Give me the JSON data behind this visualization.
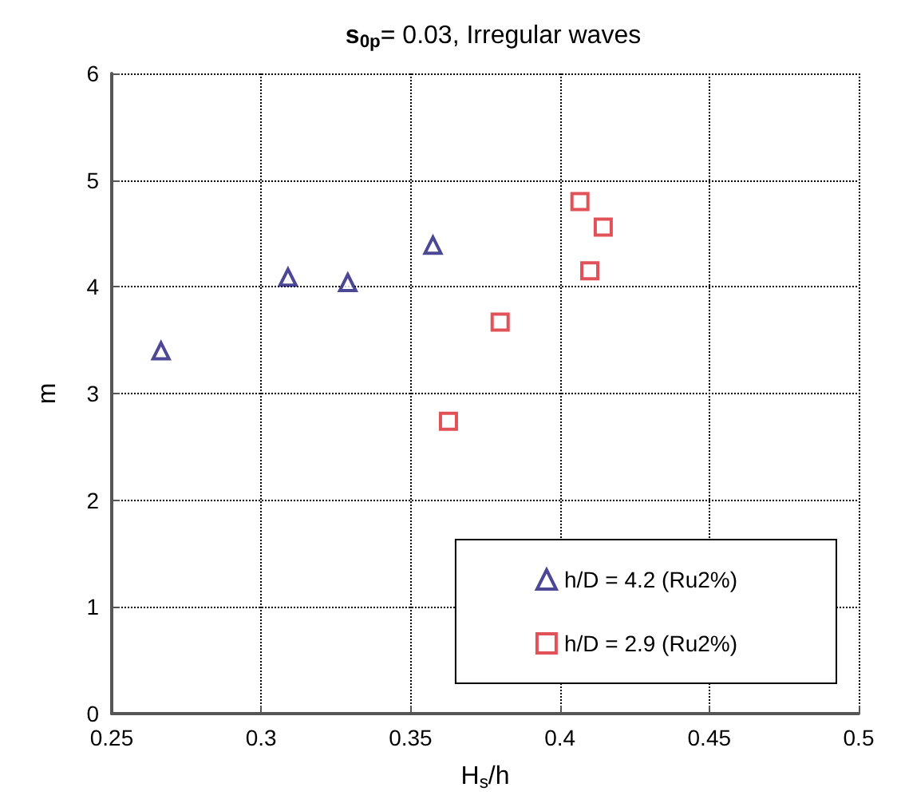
{
  "chart_data": {
    "type": "scatter",
    "title": "s$_{0p}$= 0.03, Irregular waves",
    "xlabel": "H$_{s}$/h",
    "ylabel": "m",
    "series": [
      {
        "name": "h/D = 4.2 (Ru2%)",
        "color": "#1f1a7a",
        "marker": "triangle",
        "x": [
          0.2665,
          0.309,
          0.329,
          0.3575
        ],
        "values": [
          3.4,
          4.09,
          4.04,
          4.39
        ]
      },
      {
        "name": "h/D = 2.9 (Ru2%)",
        "color": "#d9262e",
        "marker": "square",
        "x": [
          0.4067,
          0.4145,
          0.41,
          0.38,
          0.3627
        ],
        "values": [
          4.8,
          4.56,
          4.15,
          3.67,
          2.74
        ]
      }
    ],
    "xlim": [
      0.25,
      0.5
    ],
    "xticks": [
      0.25,
      0.3,
      0.35,
      0.4,
      0.45,
      0.5
    ],
    "ylim": [
      0,
      6
    ],
    "yticks": [
      0,
      1,
      2,
      3,
      4,
      5,
      6
    ],
    "grid": true,
    "line_style": "dotted",
    "legend": "bottom right"
  }
}
